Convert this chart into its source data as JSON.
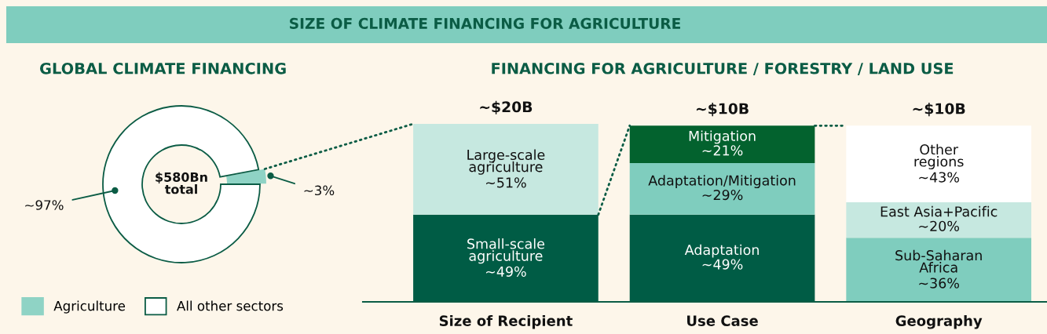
{
  "chart_data": [
    {
      "type": "other",
      "title": "SIZE OF CLIMATE FINANCING FOR AGRICULTURE"
    },
    {
      "type": "donut",
      "title": "GLOBAL CLIMATE FINANCING",
      "categories": [
        "Agriculture",
        "All other sectors"
      ],
      "values": [
        3,
        97
      ],
      "colors": [
        "#8fd3c5",
        "#ffffff"
      ],
      "value_labels": [
        "~3%",
        "~97%"
      ],
      "annotations": [
        "$580Bn total"
      ],
      "legend": "bottom"
    },
    {
      "type": "bar",
      "stacked": true,
      "title": "FINANCING FOR AGRICULTURE / FORESTRY / LAND USE",
      "categories": [
        "Size of Recipient",
        "Use Case",
        "Geography"
      ],
      "series": [
        {
          "name": "Small-scale agriculture",
          "color": "#005c45",
          "values": [
            49,
            null,
            null
          ],
          "value_labels": [
            "~49%",
            null,
            null
          ]
        },
        {
          "name": "Large-scale agriculture",
          "color": "#c6e8e0",
          "values": [
            51,
            null,
            null
          ],
          "value_labels": [
            "~51%",
            null,
            null
          ]
        },
        {
          "name": "Adaptation",
          "color": "#005c45",
          "values": [
            null,
            49,
            null
          ],
          "value_labels": [
            null,
            "~49%",
            null
          ]
        },
        {
          "name": "Adaptation/Mitigation",
          "color": "#7fcdbe",
          "values": [
            null,
            29,
            null
          ],
          "value_labels": [
            null,
            "~29%",
            null
          ]
        },
        {
          "name": "Mitigation",
          "color": "#03622e",
          "values": [
            null,
            21,
            null
          ],
          "value_labels": [
            null,
            "~21%",
            null
          ]
        },
        {
          "name": "Sub-Saharan Africa",
          "color": "#7fcdbe",
          "values": [
            null,
            null,
            36
          ],
          "value_labels": [
            null,
            null,
            "~36%"
          ]
        },
        {
          "name": "East Asia+Pacific",
          "color": "#c6e8e0",
          "values": [
            null,
            null,
            20
          ],
          "value_labels": [
            null,
            null,
            "~20%"
          ]
        },
        {
          "name": "Other regions",
          "color": "#ffffff",
          "values": [
            null,
            null,
            43
          ],
          "value_labels": [
            null,
            null,
            "~43%"
          ]
        }
      ],
      "annotations": [
        {
          "text": "~$20B",
          "x": "Size of Recipient",
          "y": 100
        },
        {
          "text": "~$10B",
          "x": "Use Case",
          "y": 99
        },
        {
          "text": "~$10B",
          "x": "Geography",
          "y": 99
        }
      ]
    }
  ]
}
